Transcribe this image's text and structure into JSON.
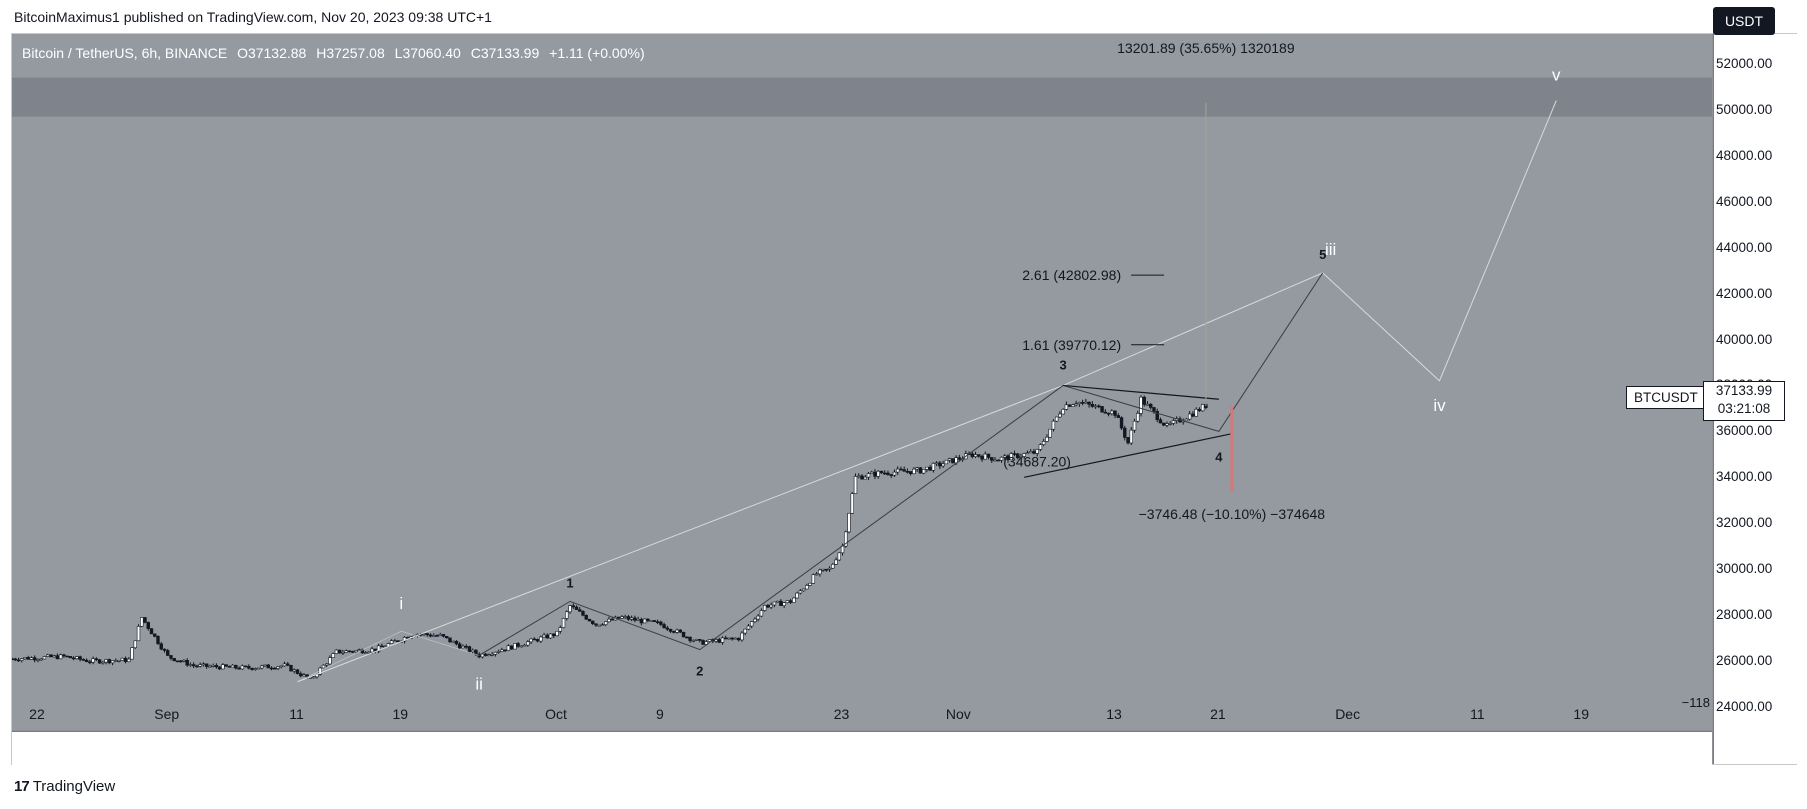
{
  "header": {
    "text": "BitcoinMaximus1 published on TradingView.com, Nov 20, 2023 09:38 UTC+1"
  },
  "legend": {
    "symbol": "Bitcoin / TetherUS, 6h, BINANCE",
    "open": "O37132.88",
    "high": "H37257.08",
    "low": "L37060.40",
    "close": "C37133.99",
    "change": "+1.11 (+0.00%)"
  },
  "currency_button": "USDT",
  "symbol_label": "BTCUSDT",
  "last_price": "37133.99",
  "countdown": "03:21:08",
  "footer": {
    "brand": "TradingView",
    "logo": "17"
  },
  "colors": {
    "plot_bg": "#9599a0",
    "resistance_zone": "#7f838b",
    "candle": "#131722",
    "path": "#d9d9d9",
    "red_bar": "#d17a7a"
  },
  "chart_data": {
    "type": "candlestick",
    "symbol": "BTCUSDT",
    "timeframe": "6h",
    "exchange": "BINANCE",
    "y_ticks": [
      "52000.00",
      "50000.00",
      "48000.00",
      "46000.00",
      "44000.00",
      "42000.00",
      "40000.00",
      "38000.00",
      "36000.00",
      "34000.00",
      "32000.00",
      "30000.00",
      "28000.00",
      "26000.00",
      "24000.00"
    ],
    "ylim": [
      23000,
      53300
    ],
    "x_ticks": [
      "22",
      "Sep",
      "11",
      "19",
      "Oct",
      "9",
      "23",
      "Nov",
      "13",
      "21",
      "Dec",
      "11",
      "19"
    ],
    "x_tick_dates": [
      "2023-08-22",
      "2023-09-01",
      "2023-09-11",
      "2023-09-19",
      "2023-10-01",
      "2023-10-09",
      "2023-10-23",
      "2023-11-01",
      "2023-11-13",
      "2023-11-21",
      "2023-12-01",
      "2023-12-11",
      "2023-12-19"
    ],
    "xlim": [
      "2023-08-20",
      "2023-12-29"
    ],
    "price_path": [
      [
        "2023-08-20",
        26100
      ],
      [
        "2023-08-24",
        26200
      ],
      [
        "2023-08-26",
        26000
      ],
      [
        "2023-08-29",
        26050
      ],
      [
        "2023-08-30",
        27900
      ],
      [
        "2023-09-01",
        26200
      ],
      [
        "2023-09-03",
        25800
      ],
      [
        "2023-09-07",
        25700
      ],
      [
        "2023-09-10",
        25800
      ],
      [
        "2023-09-12",
        25200
      ],
      [
        "2023-09-14",
        26400
      ],
      [
        "2023-09-17",
        26500
      ],
      [
        "2023-09-20",
        27200
      ],
      [
        "2023-09-22",
        27100
      ],
      [
        "2023-09-25",
        26250
      ],
      [
        "2023-09-28",
        26700
      ],
      [
        "2023-10-01",
        27200
      ],
      [
        "2023-10-02",
        28400
      ],
      [
        "2023-10-04",
        27600
      ],
      [
        "2023-10-06",
        27900
      ],
      [
        "2023-10-09",
        27600
      ],
      [
        "2023-10-12",
        26800
      ],
      [
        "2023-10-15",
        27000
      ],
      [
        "2023-10-17",
        28400
      ],
      [
        "2023-10-19",
        28600
      ],
      [
        "2023-10-21",
        29800
      ],
      [
        "2023-10-22",
        30000
      ],
      [
        "2023-10-23",
        31000
      ],
      [
        "2023-10-24",
        34000
      ],
      [
        "2023-10-26",
        34200
      ],
      [
        "2023-10-29",
        34300
      ],
      [
        "2023-11-02",
        35000
      ],
      [
        "2023-11-04",
        34800
      ],
      [
        "2023-11-07",
        35100
      ],
      [
        "2023-11-09",
        37100
      ],
      [
        "2023-11-10",
        37300
      ],
      [
        "2023-11-13",
        36800
      ],
      [
        "2023-11-14",
        35500
      ],
      [
        "2023-11-15",
        37400
      ],
      [
        "2023-11-17",
        36200
      ],
      [
        "2023-11-19",
        36800
      ],
      [
        "2023-11-20",
        37134
      ]
    ],
    "levels": [
      {
        "label": "2.61 (42802.98)",
        "value": 42803
      },
      {
        "label": "1.61 (39770.12)",
        "value": 39770
      },
      {
        "label": "(34687.20)",
        "value": 34687
      }
    ],
    "resistance_zone": [
      49700,
      51400
    ],
    "measure_up": {
      "label": "13201.89 (35.65%) 1320189",
      "from": 37100,
      "to": 50300
    },
    "measure_down": {
      "label": "−3746.48 (−10.10%) −374648",
      "from": 37100,
      "to": 33400
    },
    "wave_labels_minor": [
      "1",
      "2",
      "3",
      "4",
      "5"
    ],
    "wave_labels_major": [
      "i",
      "ii",
      "iii",
      "iv",
      "v"
    ],
    "edge_label": "−118"
  }
}
